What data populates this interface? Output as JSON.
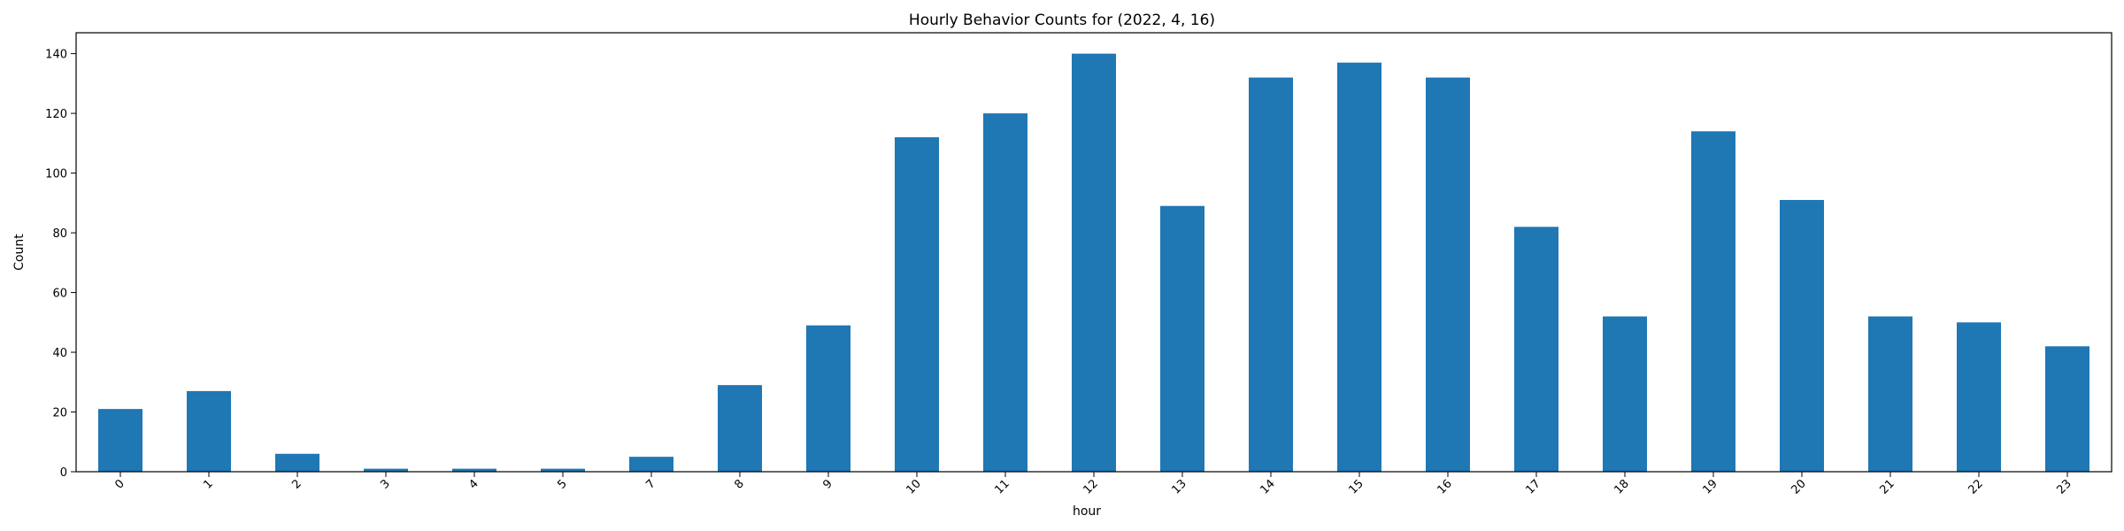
{
  "chart_data": {
    "type": "bar",
    "title": "Hourly Behavior Counts for (2022, 4, 16)",
    "xlabel": "hour",
    "ylabel": "Count",
    "categories": [
      "0",
      "1",
      "2",
      "3",
      "4",
      "5",
      "7",
      "8",
      "9",
      "10",
      "11",
      "12",
      "13",
      "14",
      "15",
      "16",
      "17",
      "18",
      "19",
      "20",
      "21",
      "22",
      "23"
    ],
    "values": [
      21,
      27,
      6,
      1,
      1,
      1,
      5,
      29,
      49,
      112,
      120,
      140,
      89,
      132,
      137,
      132,
      82,
      52,
      114,
      91,
      52,
      50,
      42
    ],
    "ylim": [
      0,
      147
    ],
    "yticks": [
      0,
      20,
      40,
      60,
      80,
      100,
      120,
      140
    ],
    "bar_color": "#1f77b4",
    "grid": false,
    "legend": "none"
  }
}
